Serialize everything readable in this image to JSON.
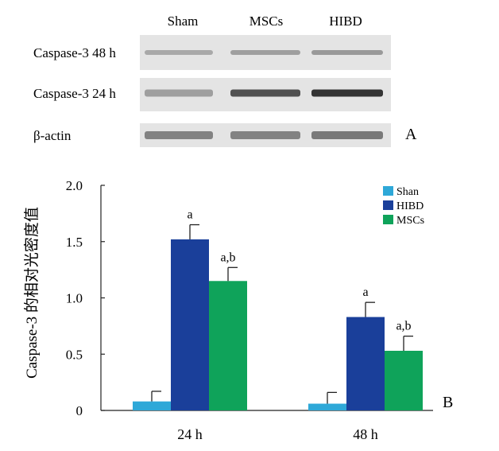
{
  "blot": {
    "panel_label": "A",
    "lanes": [
      "Sham",
      "MSCs",
      "HIBD"
    ],
    "rows": [
      {
        "label": "Caspase-3 48 h",
        "band_intensity": [
          0.3,
          0.35,
          0.38
        ]
      },
      {
        "label": "Caspase-3 24 h",
        "band_intensity": [
          0.35,
          0.75,
          0.9
        ]
      },
      {
        "label": "β-actin",
        "band_intensity": [
          0.5,
          0.5,
          0.55
        ]
      }
    ],
    "colors": {
      "background": "#e4e4e4",
      "band": "#202020"
    }
  },
  "chart_data": {
    "type": "bar",
    "panel_label": "B",
    "title": "",
    "ylabel": "Caspase-3 的相对光密度值",
    "xlabel": "",
    "categories": [
      "24 h",
      "48 h"
    ],
    "ylim": [
      0,
      2.0
    ],
    "yticks": [
      "0",
      "0.5",
      "1.0",
      "1.5",
      "2.0"
    ],
    "ytick_values": [
      0,
      0.5,
      1.0,
      1.5,
      2.0
    ],
    "grid": false,
    "legend_position": "top-right",
    "series": [
      {
        "name": "Shan",
        "color": "#2ea8d8",
        "values": [
          0.08,
          0.06
        ],
        "errors": [
          0.09,
          0.1
        ],
        "labels": [
          "",
          ""
        ]
      },
      {
        "name": "HIBD",
        "color": "#1a3f9a",
        "values": [
          1.52,
          0.83
        ],
        "errors": [
          0.13,
          0.13
        ],
        "labels": [
          "a",
          "a"
        ]
      },
      {
        "name": "MSCs",
        "color": "#0fa35a",
        "values": [
          1.15,
          0.53
        ],
        "errors": [
          0.12,
          0.13
        ],
        "labels": [
          "a,b",
          "a,b"
        ]
      }
    ]
  }
}
